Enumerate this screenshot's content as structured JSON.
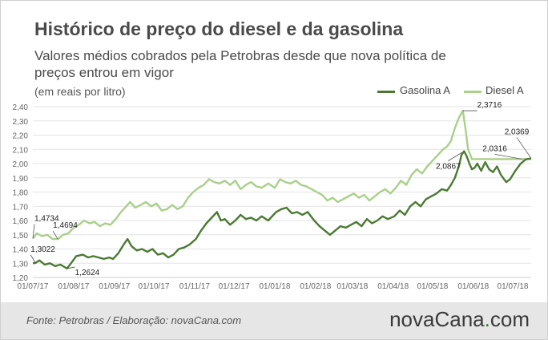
{
  "header": {
    "title": "Histórico de preço do diesel e da gasolina",
    "subtitle": "Valores médios cobrados pela Petrobras desde que nova política de preços entrou em vigor",
    "unit": "(em reais por litro)"
  },
  "legend": {
    "gasolina": "Gasolina A",
    "diesel": "Diesel A"
  },
  "colors": {
    "gasolina": "#4a7a32",
    "diesel": "#a9d08a",
    "axis_text": "#666666",
    "grid": "#e3e3e3"
  },
  "footer": {
    "source": "Fonte: Petrobras / Elaboração: novaCana.com",
    "brand_main": "novaCana",
    "brand_dot": ".",
    "brand_tld": "com"
  },
  "chart_data": {
    "type": "line",
    "title": "Histórico de preço do diesel e da gasolina",
    "ylabel": "(em reais por litro)",
    "ylim": [
      1.2,
      2.4
    ],
    "y_ticks": [
      "1,20",
      "1,30",
      "1,40",
      "1,50",
      "1,60",
      "1,70",
      "1,80",
      "1,90",
      "2,00",
      "2,10",
      "2,20",
      "2,30",
      "2,40"
    ],
    "x_ticks": [
      "01/07/17",
      "01/08/17",
      "01/09/17",
      "01/10/17",
      "01/11/17",
      "01/12/17",
      "01/01/18",
      "01/02/18",
      "01/03/18",
      "01/04/18",
      "01/05/18",
      "01/06/18",
      "01/07/18"
    ],
    "grid": true,
    "legend_position": "top-right",
    "series": [
      {
        "name": "Gasolina A",
        "color": "#4a7a32",
        "points": [
          [
            "2017-07-01",
            1.3
          ],
          [
            "2017-07-03",
            1.3022
          ],
          [
            "2017-07-06",
            1.32
          ],
          [
            "2017-07-10",
            1.29
          ],
          [
            "2017-07-14",
            1.3
          ],
          [
            "2017-07-18",
            1.28
          ],
          [
            "2017-07-22",
            1.29
          ],
          [
            "2017-07-27",
            1.2624
          ],
          [
            "2017-07-30",
            1.3
          ],
          [
            "2017-08-03",
            1.35
          ],
          [
            "2017-08-08",
            1.36
          ],
          [
            "2017-08-12",
            1.34
          ],
          [
            "2017-08-16",
            1.35
          ],
          [
            "2017-08-20",
            1.34
          ],
          [
            "2017-08-24",
            1.33
          ],
          [
            "2017-08-28",
            1.34
          ],
          [
            "2017-08-31",
            1.33
          ],
          [
            "2017-09-04",
            1.37
          ],
          [
            "2017-09-08",
            1.43
          ],
          [
            "2017-09-11",
            1.47
          ],
          [
            "2017-09-14",
            1.42
          ],
          [
            "2017-09-18",
            1.39
          ],
          [
            "2017-09-22",
            1.4
          ],
          [
            "2017-09-26",
            1.38
          ],
          [
            "2017-09-30",
            1.4
          ],
          [
            "2017-10-04",
            1.36
          ],
          [
            "2017-10-08",
            1.37
          ],
          [
            "2017-10-12",
            1.34
          ],
          [
            "2017-10-16",
            1.36
          ],
          [
            "2017-10-20",
            1.4
          ],
          [
            "2017-10-24",
            1.41
          ],
          [
            "2017-10-28",
            1.43
          ],
          [
            "2017-11-02",
            1.47
          ],
          [
            "2017-11-06",
            1.53
          ],
          [
            "2017-11-10",
            1.58
          ],
          [
            "2017-11-14",
            1.62
          ],
          [
            "2017-11-18",
            1.66
          ],
          [
            "2017-11-21",
            1.6
          ],
          [
            "2017-11-24",
            1.61
          ],
          [
            "2017-11-28",
            1.57
          ],
          [
            "2017-12-02",
            1.6
          ],
          [
            "2017-12-06",
            1.64
          ],
          [
            "2017-12-10",
            1.61
          ],
          [
            "2017-12-14",
            1.62
          ],
          [
            "2017-12-18",
            1.6
          ],
          [
            "2017-12-22",
            1.63
          ],
          [
            "2017-12-27",
            1.6
          ],
          [
            "2018-01-02",
            1.66
          ],
          [
            "2018-01-06",
            1.68
          ],
          [
            "2018-01-10",
            1.69
          ],
          [
            "2018-01-14",
            1.65
          ],
          [
            "2018-01-18",
            1.66
          ],
          [
            "2018-01-22",
            1.64
          ],
          [
            "2018-01-26",
            1.66
          ],
          [
            "2018-01-31",
            1.6
          ],
          [
            "2018-02-04",
            1.56
          ],
          [
            "2018-02-08",
            1.53
          ],
          [
            "2018-02-12",
            1.5
          ],
          [
            "2018-02-16",
            1.53
          ],
          [
            "2018-02-20",
            1.56
          ],
          [
            "2018-02-24",
            1.55
          ],
          [
            "2018-02-28",
            1.57
          ],
          [
            "2018-03-04",
            1.59
          ],
          [
            "2018-03-08",
            1.56
          ],
          [
            "2018-03-12",
            1.61
          ],
          [
            "2018-03-16",
            1.58
          ],
          [
            "2018-03-20",
            1.6
          ],
          [
            "2018-03-24",
            1.63
          ],
          [
            "2018-03-28",
            1.61
          ],
          [
            "2018-04-02",
            1.63
          ],
          [
            "2018-04-06",
            1.67
          ],
          [
            "2018-04-10",
            1.64
          ],
          [
            "2018-04-14",
            1.7
          ],
          [
            "2018-04-18",
            1.73
          ],
          [
            "2018-04-22",
            1.7
          ],
          [
            "2018-04-26",
            1.75
          ],
          [
            "2018-04-30",
            1.77
          ],
          [
            "2018-05-04",
            1.79
          ],
          [
            "2018-05-08",
            1.82
          ],
          [
            "2018-05-12",
            1.81
          ],
          [
            "2018-05-15",
            1.85
          ],
          [
            "2018-05-18",
            1.9
          ],
          [
            "2018-05-21",
            1.98
          ],
          [
            "2018-05-23",
            2.06
          ],
          [
            "2018-05-25",
            2.0867
          ],
          [
            "2018-05-27",
            2.05
          ],
          [
            "2018-05-29",
            2.0
          ],
          [
            "2018-05-31",
            1.96
          ],
          [
            "2018-06-02",
            1.97
          ],
          [
            "2018-06-04",
            2.0
          ],
          [
            "2018-06-07",
            1.95
          ],
          [
            "2018-06-10",
            2.01
          ],
          [
            "2018-06-13",
            1.96
          ],
          [
            "2018-06-16",
            1.94
          ],
          [
            "2018-06-19",
            1.98
          ],
          [
            "2018-06-22",
            1.92
          ],
          [
            "2018-06-26",
            1.87
          ],
          [
            "2018-06-29",
            1.89
          ],
          [
            "2018-07-03",
            1.95
          ],
          [
            "2018-07-07",
            2.0
          ],
          [
            "2018-07-11",
            2.03
          ],
          [
            "2018-07-15",
            2.0369
          ]
        ]
      },
      {
        "name": "Diesel A",
        "color": "#a9d08a",
        "points": [
          [
            "2017-07-01",
            1.4734
          ],
          [
            "2017-07-04",
            1.51
          ],
          [
            "2017-07-08",
            1.49
          ],
          [
            "2017-07-12",
            1.5
          ],
          [
            "2017-07-16",
            1.47
          ],
          [
            "2017-07-20",
            1.4694
          ],
          [
            "2017-07-24",
            1.5
          ],
          [
            "2017-07-28",
            1.51
          ],
          [
            "2017-08-01",
            1.55
          ],
          [
            "2017-08-05",
            1.57
          ],
          [
            "2017-08-09",
            1.6
          ],
          [
            "2017-08-13",
            1.58
          ],
          [
            "2017-08-17",
            1.59
          ],
          [
            "2017-08-21",
            1.56
          ],
          [
            "2017-08-25",
            1.58
          ],
          [
            "2017-08-29",
            1.57
          ],
          [
            "2017-09-02",
            1.61
          ],
          [
            "2017-09-06",
            1.66
          ],
          [
            "2017-09-10",
            1.7
          ],
          [
            "2017-09-13",
            1.73
          ],
          [
            "2017-09-17",
            1.69
          ],
          [
            "2017-09-21",
            1.71
          ],
          [
            "2017-09-25",
            1.73
          ],
          [
            "2017-09-29",
            1.7
          ],
          [
            "2017-10-03",
            1.72
          ],
          [
            "2017-10-07",
            1.67
          ],
          [
            "2017-10-11",
            1.68
          ],
          [
            "2017-10-15",
            1.71
          ],
          [
            "2017-10-19",
            1.68
          ],
          [
            "2017-10-23",
            1.7
          ],
          [
            "2017-10-27",
            1.76
          ],
          [
            "2017-10-31",
            1.8
          ],
          [
            "2017-11-04",
            1.83
          ],
          [
            "2017-11-08",
            1.85
          ],
          [
            "2017-11-12",
            1.89
          ],
          [
            "2017-11-16",
            1.87
          ],
          [
            "2017-11-20",
            1.86
          ],
          [
            "2017-11-24",
            1.88
          ],
          [
            "2017-11-28",
            1.85
          ],
          [
            "2017-12-02",
            1.88
          ],
          [
            "2017-12-06",
            1.82
          ],
          [
            "2017-12-10",
            1.85
          ],
          [
            "2017-12-14",
            1.87
          ],
          [
            "2017-12-18",
            1.84
          ],
          [
            "2017-12-22",
            1.83
          ],
          [
            "2017-12-27",
            1.86
          ],
          [
            "2018-01-01",
            1.83
          ],
          [
            "2018-01-05",
            1.89
          ],
          [
            "2018-01-09",
            1.87
          ],
          [
            "2018-01-13",
            1.86
          ],
          [
            "2018-01-17",
            1.88
          ],
          [
            "2018-01-21",
            1.85
          ],
          [
            "2018-01-25",
            1.84
          ],
          [
            "2018-01-29",
            1.82
          ],
          [
            "2018-02-02",
            1.8
          ],
          [
            "2018-02-06",
            1.78
          ],
          [
            "2018-02-10",
            1.74
          ],
          [
            "2018-02-14",
            1.76
          ],
          [
            "2018-02-18",
            1.73
          ],
          [
            "2018-02-22",
            1.75
          ],
          [
            "2018-02-26",
            1.77
          ],
          [
            "2018-03-02",
            1.79
          ],
          [
            "2018-03-06",
            1.76
          ],
          [
            "2018-03-10",
            1.78
          ],
          [
            "2018-03-14",
            1.74
          ],
          [
            "2018-03-18",
            1.77
          ],
          [
            "2018-03-22",
            1.8
          ],
          [
            "2018-03-26",
            1.82
          ],
          [
            "2018-03-30",
            1.79
          ],
          [
            "2018-04-03",
            1.83
          ],
          [
            "2018-04-07",
            1.88
          ],
          [
            "2018-04-11",
            1.85
          ],
          [
            "2018-04-15",
            1.92
          ],
          [
            "2018-04-19",
            1.96
          ],
          [
            "2018-04-23",
            1.93
          ],
          [
            "2018-04-27",
            1.98
          ],
          [
            "2018-05-01",
            2.02
          ],
          [
            "2018-05-05",
            2.06
          ],
          [
            "2018-05-09",
            2.1
          ],
          [
            "2018-05-12",
            2.12
          ],
          [
            "2018-05-15",
            2.16
          ],
          [
            "2018-05-18",
            2.25
          ],
          [
            "2018-05-21",
            2.32
          ],
          [
            "2018-05-24",
            2.3716
          ],
          [
            "2018-05-26",
            2.25
          ],
          [
            "2018-05-28",
            2.1
          ],
          [
            "2018-05-31",
            2.0316
          ],
          [
            "2018-06-15",
            2.0316
          ],
          [
            "2018-06-30",
            2.0316
          ],
          [
            "2018-07-15",
            2.0316
          ]
        ]
      }
    ],
    "annotations": [
      {
        "text": "1,4734",
        "x": "2017-07-01",
        "y": 1.4734
      },
      {
        "text": "1,4694",
        "x": "2017-07-20",
        "y": 1.4694
      },
      {
        "text": "1,3022",
        "x": "2017-07-03",
        "y": 1.3022
      },
      {
        "text": "1,2624",
        "x": "2017-07-27",
        "y": 1.2624
      },
      {
        "text": "2,3716",
        "x": "2018-05-24",
        "y": 2.3716
      },
      {
        "text": "2,0867",
        "x": "2018-05-25",
        "y": 2.0867
      },
      {
        "text": "2,0316",
        "x": "2018-07-08",
        "y": 2.0316
      },
      {
        "text": "2,0369",
        "x": "2018-07-15",
        "y": 2.0369
      }
    ]
  }
}
